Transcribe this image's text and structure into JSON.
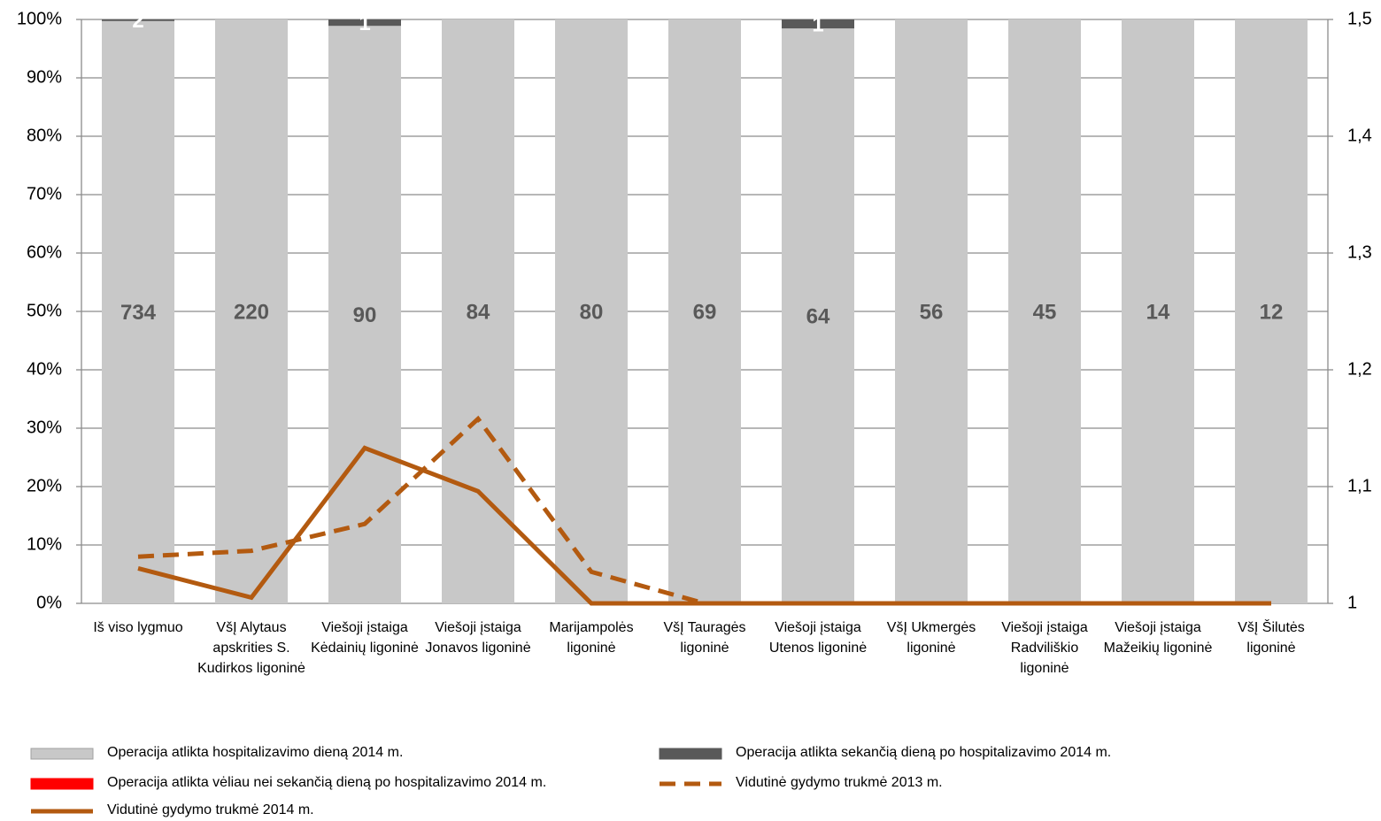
{
  "chart_data": {
    "type": "stacked_percent_bar_line",
    "categories": [
      "Iš viso lygmuo",
      "VšĮ Alytaus apskrities S. Kudirkos ligoninė",
      "Viešoji įstaiga Kėdainių ligoninė",
      "Viešoji įstaiga Jonavos ligoninė",
      "Marijampolės ligoninė",
      "VšĮ Tauragės ligoninė",
      "Viešoji įstaiga Utenos ligoninė",
      "VšĮ Ukmergės ligoninė",
      "Viešoji įstaiga Radviliškio ligoninė",
      "Viešoji įstaiga Mažeikių ligoninė",
      "VšĮ Šilutės ligoninė"
    ],
    "series": [
      {
        "name": "Operacija atlikta hospitalizavimo dieną 2014 m.",
        "type": "bar",
        "color": "#c8c8c8",
        "label_color": "#595959",
        "data_labels": true,
        "values": [
          734,
          220,
          90,
          84,
          80,
          69,
          64,
          56,
          45,
          14,
          12
        ]
      },
      {
        "name": "Operacija atlikta sekančią dieną po hospitalizavimo 2014 m.",
        "type": "bar",
        "color": "#595959",
        "label_color": "#ffffff",
        "data_labels": true,
        "values": [
          2,
          null,
          1,
          null,
          null,
          null,
          1,
          null,
          null,
          null,
          null
        ]
      },
      {
        "name": "Operacija atlikta vėliau nei sekančią dieną po hospitalizavimo 2014 m.",
        "type": "bar",
        "color": "#ff0000",
        "data_labels": false,
        "values": [
          0,
          0,
          0,
          0,
          0,
          0,
          0,
          0,
          0,
          0,
          0
        ]
      },
      {
        "name": "Vidutinė gydymo trukmė 2013 m.",
        "type": "line",
        "axis": "y2",
        "dash": true,
        "color": "#b35a10",
        "values": [
          1.04,
          1.045,
          1.068,
          1.158,
          1.027,
          1.0,
          1.0,
          1.0,
          1.0,
          1.0,
          1.0
        ]
      },
      {
        "name": "Vidutinė gydymo trukmė 2014 m.",
        "type": "line",
        "axis": "y2",
        "dash": false,
        "color": "#b35a10",
        "values": [
          1.03,
          1.005,
          1.133,
          1.096,
          1.0,
          1.0,
          1.0,
          1.0,
          1.0,
          1.0,
          1.0
        ]
      }
    ],
    "ylim": [
      0,
      100
    ],
    "yticks": [
      {
        "value": 0,
        "label": "0%"
      },
      {
        "value": 10,
        "label": "10%"
      },
      {
        "value": 20,
        "label": "20%"
      },
      {
        "value": 30,
        "label": "30%"
      },
      {
        "value": 40,
        "label": "40%"
      },
      {
        "value": 50,
        "label": "50%"
      },
      {
        "value": 60,
        "label": "60%"
      },
      {
        "value": 70,
        "label": "70%"
      },
      {
        "value": 80,
        "label": "80%"
      },
      {
        "value": 90,
        "label": "90%"
      },
      {
        "value": 100,
        "label": "100%"
      }
    ],
    "y2lim": [
      1,
      1.5
    ],
    "y2ticks": [
      1,
      {
        "value": 1.1,
        "label": "1,1"
      },
      {
        "value": 1.2,
        "label": "1,2"
      },
      {
        "value": 1.3,
        "label": "1,3"
      },
      {
        "value": 1.4,
        "label": "1,4"
      },
      {
        "value": 1.5,
        "label": "1,5"
      }
    ],
    "grid": true
  }
}
